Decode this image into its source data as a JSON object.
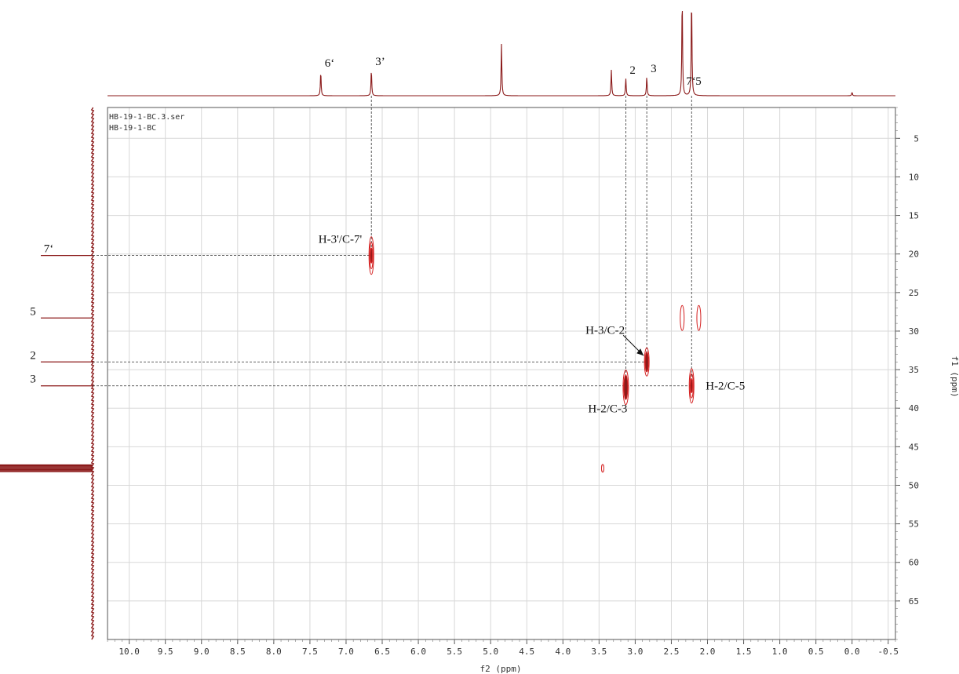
{
  "chart_data": {
    "type": "heatmap",
    "subtype": "2D NMR (HMBC) contour plot with projection spectra",
    "file_label_1": "HB-19-1-BC.3.ser",
    "file_label_2": "HB-19-1-BC",
    "x_axis": {
      "label": "f2 (ppm)",
      "range": [
        10.3,
        -0.6
      ],
      "reversed": true,
      "ticks": [
        "10.0",
        "9.5",
        "9.0",
        "8.5",
        "8.0",
        "7.5",
        "7.0",
        "6.5",
        "6.0",
        "5.5",
        "5.0",
        "4.5",
        "4.0",
        "3.5",
        "3.0",
        "2.5",
        "2.0",
        "1.5",
        "1.0",
        "0.5",
        "0.0",
        "-0.5"
      ],
      "tick_values": [
        10.0,
        9.5,
        9.0,
        8.5,
        8.0,
        7.5,
        7.0,
        6.5,
        6.0,
        5.5,
        5.0,
        4.5,
        4.0,
        3.5,
        3.0,
        2.5,
        2.0,
        1.5,
        1.0,
        0.5,
        0.0,
        -0.5
      ]
    },
    "y_axis": {
      "label": "f1 (ppm)",
      "range": [
        1,
        70
      ],
      "ticks": [
        "5",
        "10",
        "15",
        "20",
        "25",
        "30",
        "35",
        "40",
        "45",
        "50",
        "55",
        "60",
        "65"
      ],
      "tick_values": [
        5,
        10,
        15,
        20,
        25,
        30,
        35,
        40,
        45,
        50,
        55,
        60,
        65
      ]
    },
    "grid": true,
    "proton_spectrum_peaks": [
      {
        "ppm": 7.35,
        "height": 0.28,
        "label": "6‘"
      },
      {
        "ppm": 6.65,
        "height": 0.3,
        "label": "3’"
      },
      {
        "ppm": 4.85,
        "height": 0.6,
        "label": ""
      },
      {
        "ppm": 3.33,
        "height": 0.3,
        "label": ""
      },
      {
        "ppm": 3.13,
        "height": 0.2,
        "label": "2"
      },
      {
        "ppm": 2.84,
        "height": 0.22,
        "label": "3"
      },
      {
        "ppm": 2.35,
        "height": 1.15,
        "label": "7‘"
      },
      {
        "ppm": 2.22,
        "height": 1.15,
        "label": "5"
      },
      {
        "ppm": 0.0,
        "height": 0.04,
        "label": ""
      }
    ],
    "carbon_projection_peaks": [
      {
        "ppm": 20.2,
        "label": "7‘"
      },
      {
        "ppm": 28.3,
        "label": "5"
      },
      {
        "ppm": 34.0,
        "label": "2"
      },
      {
        "ppm": 37.1,
        "label": "3"
      },
      {
        "ppm": 47.8,
        "label": ""
      }
    ],
    "cross_peaks": [
      {
        "f2": 6.65,
        "f1": 20.2,
        "label": "H-3'/C-7'"
      },
      {
        "f2": 2.84,
        "f1": 34.0,
        "label": "H-3/C-2"
      },
      {
        "f2": 3.13,
        "f1": 37.3,
        "label": "H-2/C-3"
      },
      {
        "f2": 2.22,
        "f1": 37.1,
        "label": "H-2/C-5"
      },
      {
        "f2": 2.35,
        "f1": 28.3,
        "label": ""
      },
      {
        "f2": 2.12,
        "f1": 28.3,
        "label": ""
      },
      {
        "f2": 3.45,
        "f1": 47.8,
        "label": ""
      }
    ],
    "colors": {
      "spectrum": "#8b1a1a",
      "contour": "#d42020",
      "grid": "#d8d8d8",
      "guide": "#333333"
    }
  }
}
